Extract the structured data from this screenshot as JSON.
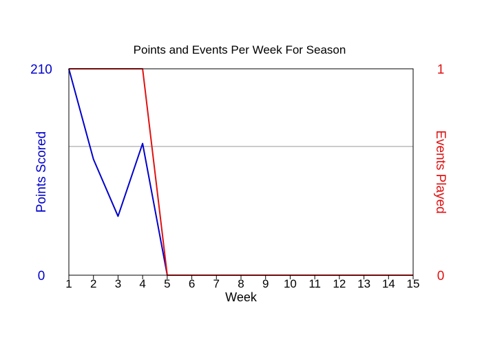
{
  "chart_data": {
    "type": "line",
    "title": "Points and Events Per Week For Season",
    "xlabel": "Week",
    "x": [
      1,
      2,
      3,
      4,
      5,
      6,
      7,
      8,
      9,
      10,
      11,
      12,
      13,
      14,
      15
    ],
    "xlim": [
      1,
      15
    ],
    "grid": false,
    "y_left": {
      "label": "Points Scored",
      "ylim": [
        0,
        210
      ],
      "tick_labels": [
        "210",
        "0"
      ],
      "color": "#0000cc"
    },
    "y_right": {
      "label": "Events Played",
      "ylim": [
        0,
        1
      ],
      "tick_labels": [
        "1",
        "0"
      ],
      "color": "#e01010"
    },
    "reference_line": {
      "axis": "left",
      "value": 131,
      "color": "#999999"
    },
    "series": [
      {
        "axis": "left",
        "color": "#0000cc",
        "values": [
          210,
          118,
          60,
          134,
          0,
          0,
          0,
          0,
          0,
          0,
          0,
          0,
          0,
          0,
          0
        ]
      },
      {
        "axis": "right",
        "color": "#e01010",
        "values": [
          1,
          1,
          1,
          1,
          0,
          0,
          0,
          0,
          0,
          0,
          0,
          0,
          0,
          0,
          0
        ]
      }
    ]
  }
}
